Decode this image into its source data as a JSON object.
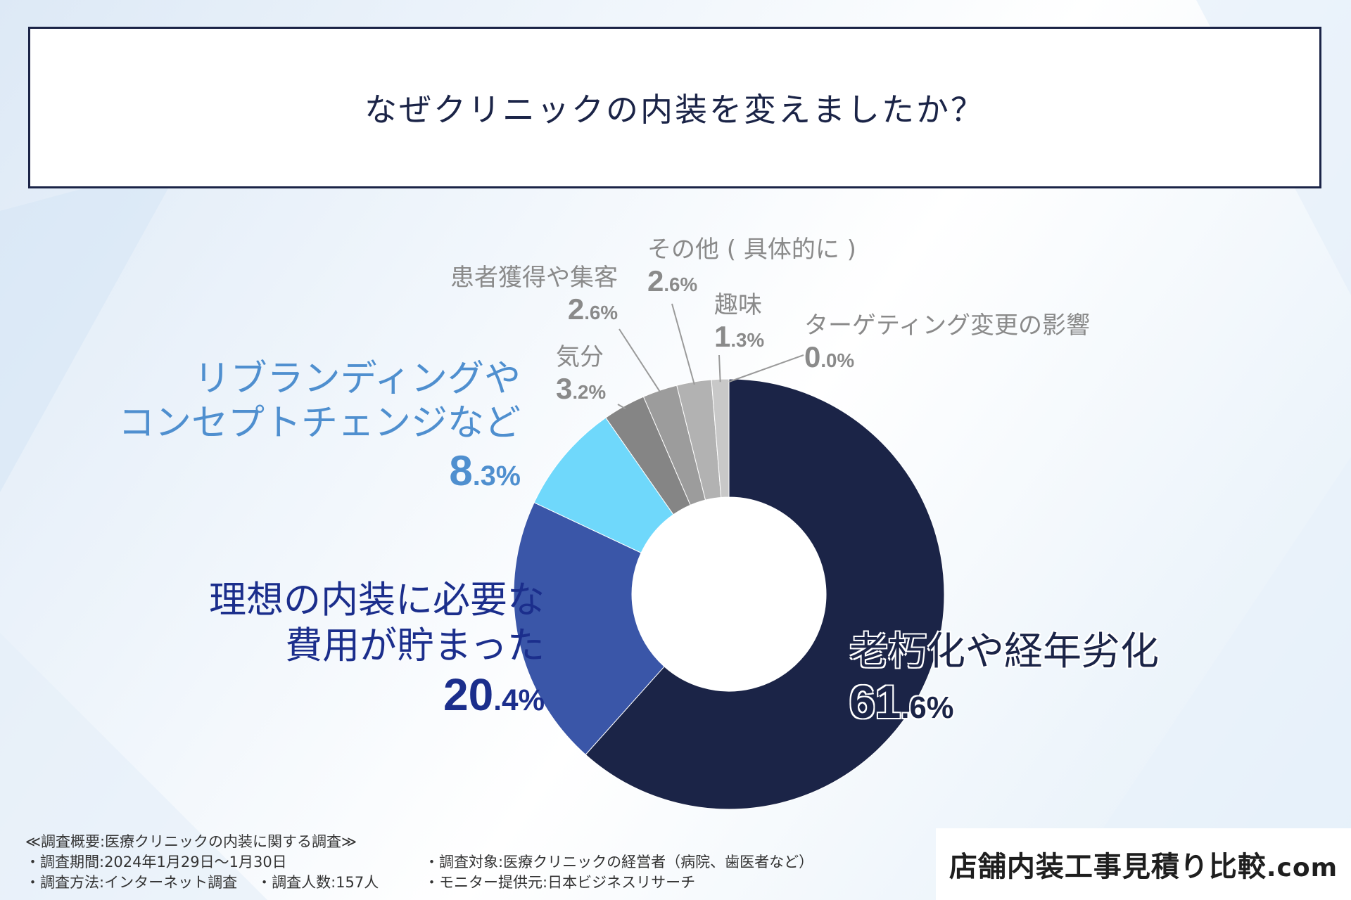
{
  "title": "なぜクリニックの内装を変えましたか？",
  "chart_data": {
    "type": "pie",
    "donut": true,
    "unit": "%",
    "slices": [
      {
        "label": "老朽化や経年劣化",
        "value": 61.6,
        "color": "#1b2447"
      },
      {
        "label": "理想の内装に必要な費用が貯まった",
        "value": 20.4,
        "color": "#3a56a8"
      },
      {
        "label": "リブランディングやコンセプトチェンジなど",
        "value": 8.3,
        "color": "#6fd8fb"
      },
      {
        "label": "気分",
        "value": 3.2,
        "color": "#858585"
      },
      {
        "label": "患者獲得や集客",
        "value": 2.6,
        "color": "#9c9c9c"
      },
      {
        "label": "その他（具体的に）",
        "value": 2.6,
        "color": "#b2b2b2"
      },
      {
        "label": "趣味",
        "value": 1.3,
        "color": "#c8c8c8"
      },
      {
        "label": "ターゲティング変更の影響",
        "value": 0.0,
        "color": "#dddddd"
      }
    ]
  },
  "labels": {
    "rouka": {
      "lines": [
        "老朽化や経年劣化"
      ],
      "int": "61",
      "dec": ".6%"
    },
    "hiyou": {
      "lines": [
        "理想の内装に必要な",
        "費用が貯まった"
      ],
      "int": "20",
      "dec": ".4%"
    },
    "rebrand": {
      "lines": [
        "リブランディングや",
        "コンセプトチェンジなど"
      ],
      "int": "8",
      "dec": ".3%"
    },
    "kibun": {
      "lines": [
        "気分"
      ],
      "int": "3",
      "dec": ".2%"
    },
    "kanja": {
      "lines": [
        "患者獲得や集客"
      ],
      "int": "2",
      "dec": ".6%"
    },
    "sonota": {
      "lines": [
        "その他 ( 具体的に )"
      ],
      "int": "2",
      "dec": ".6%"
    },
    "shumi": {
      "lines": [
        "趣味"
      ],
      "int": "1",
      "dec": ".3%"
    },
    "target": {
      "lines": [
        "ターゲティング変更の影響"
      ],
      "int": "0",
      "dec": ".0%"
    }
  },
  "footer": {
    "heading": "≪調査概要:医療クリニックの内装に関する調査≫",
    "period": "・調査期間:2024年1月29日～1月30日",
    "method": "・調査方法:インターネット調査",
    "count": "・調査人数:157人",
    "target": "・調査対象:医療クリニックの経営者（病院、歯医者など）",
    "monitor": "・モニター提供元:日本ビジネスリサーチ"
  },
  "brand": {
    "main": "店舗内装工事見積り比較",
    "domain": ".com"
  },
  "colors": {
    "navy": "#1b2447",
    "blue": "#3a56a8",
    "cyan": "#6fd8fb",
    "grey_text": "#8a8a8a",
    "rebrand_text": "#4f8fcf",
    "hiyou_text": "#1b2e8c"
  }
}
